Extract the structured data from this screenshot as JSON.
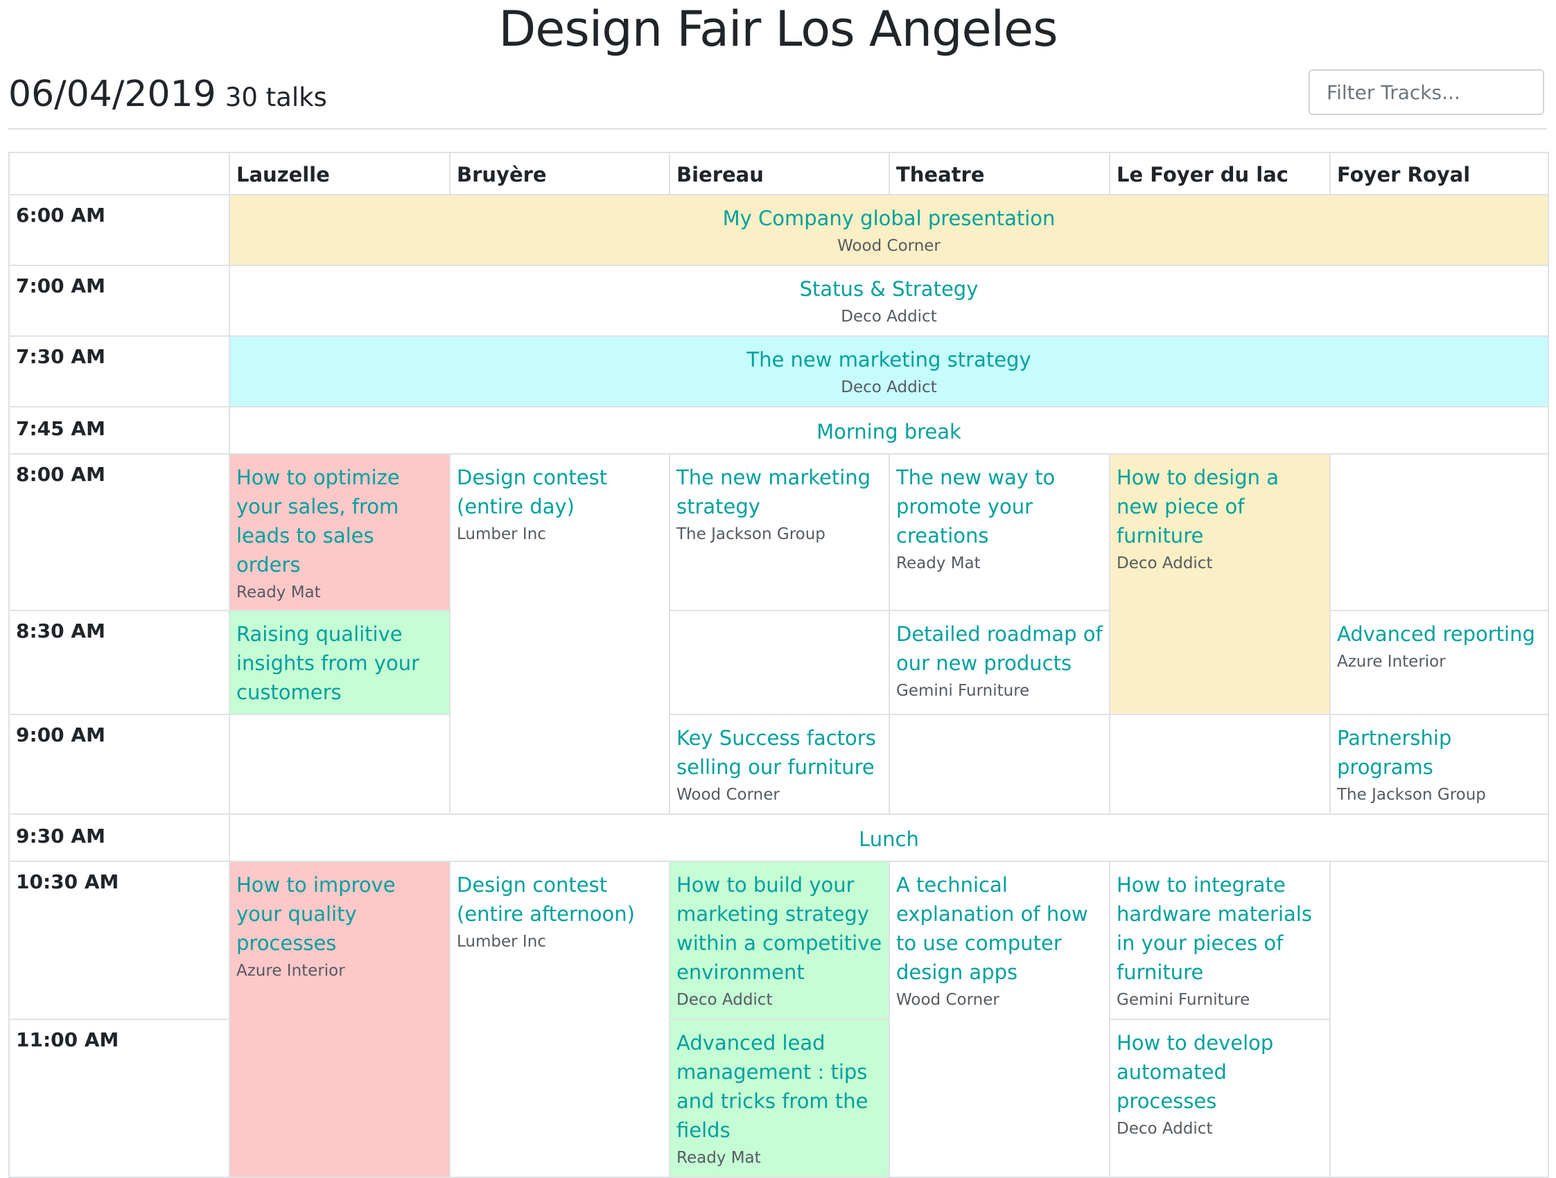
{
  "page": {
    "title": "Design Fair Los Angeles",
    "date": "06/04/2019",
    "talk_count": "30 talks",
    "filter_placeholder": "Filter Tracks..."
  },
  "columns": [
    "Lauzelle",
    "Bruyère",
    "Biereau",
    "Theatre",
    "Le Foyer du lac",
    "Foyer Royal"
  ],
  "rows": {
    "r600": {
      "time": "6:00 AM",
      "talk": {
        "title": "My Company global presentation",
        "track": "Wood Corner"
      }
    },
    "r700": {
      "time": "7:00 AM",
      "talk": {
        "title": "Status & Strategy",
        "track": "Deco Addict"
      }
    },
    "r730": {
      "time": "7:30 AM",
      "talk": {
        "title": "The new marketing strategy",
        "track": "Deco Addict"
      }
    },
    "r745": {
      "time": "7:45 AM",
      "talk": {
        "title": "Morning break"
      }
    },
    "r800": {
      "time": "8:00 AM",
      "lauzelle": {
        "title": "How to optimize your sales, from leads to sales orders",
        "track": "Ready Mat"
      },
      "bruyere": {
        "title": "Design contest (entire day)",
        "track": "Lumber Inc"
      },
      "biereau": {
        "title": "The new marketing strategy",
        "track": "The Jackson Group"
      },
      "theatre": {
        "title": "The new way to promote your creations",
        "track": "Ready Mat"
      },
      "foyer_lac": {
        "title": "How to design a new piece of furniture",
        "track": "Deco Addict"
      }
    },
    "r830": {
      "time": "8:30 AM",
      "lauzelle": {
        "title": "Raising qualitive insights from your customers"
      },
      "theatre": {
        "title": "Detailed roadmap of our new products",
        "track": "Gemini Furniture"
      },
      "foyer_royal": {
        "title": "Advanced reporting",
        "track": "Azure Interior"
      }
    },
    "r900": {
      "time": "9:00 AM",
      "biereau": {
        "title": "Key Success factors selling our furniture",
        "track": "Wood Corner"
      },
      "foyer_royal": {
        "title": "Partnership programs",
        "track": "The Jackson Group"
      }
    },
    "r930": {
      "time": "9:30 AM",
      "talk": {
        "title": "Lunch"
      }
    },
    "r1030": {
      "time": "10:30 AM",
      "lauzelle": {
        "title": "How to improve your quality processes",
        "track": "Azure Interior"
      },
      "bruyere": {
        "title": "Design contest (entire afternoon)",
        "track": "Lumber Inc"
      },
      "biereau": {
        "title": "How to build your marketing strategy within a competitive environment",
        "track": "Deco Addict"
      },
      "theatre": {
        "title": "A technical explanation of how to use computer design apps",
        "track": "Wood Corner"
      },
      "foyer_lac": {
        "title": "How to integrate hardware materials in your pieces of furniture",
        "track": "Gemini Furniture"
      }
    },
    "r1100": {
      "time": "11:00 AM",
      "biereau": {
        "title": "Advanced lead management : tips and tricks from the fields",
        "track": "Ready Mat"
      },
      "foyer_lac": {
        "title": "How to develop automated processes",
        "track": "Deco Addict"
      }
    }
  },
  "colors": {
    "link": "#00A09D",
    "yellow": "#fcefc5",
    "cyan": "#c6fcfd",
    "red": "#fec8c9",
    "green": "#c5fed5"
  }
}
